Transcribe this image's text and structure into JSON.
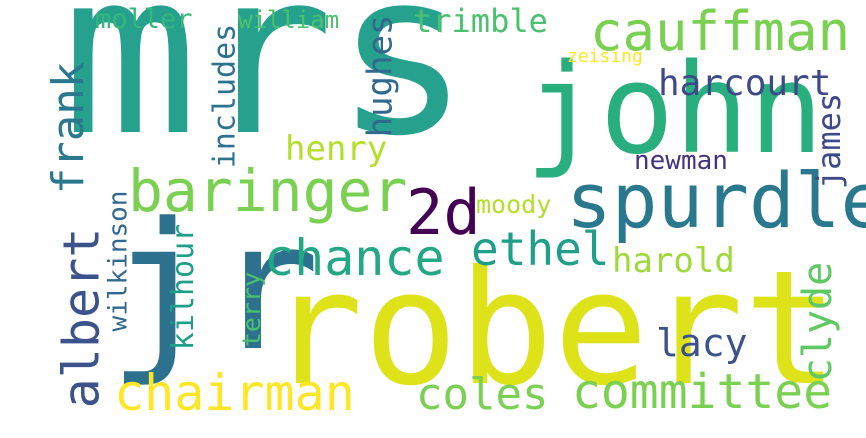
{
  "words": [
    {
      "text": "mrs",
      "color": "#25a18e"
    },
    {
      "text": "john",
      "color": "#29af7f"
    },
    {
      "text": "robert",
      "color": "#dde318"
    },
    {
      "text": "jr",
      "color": "#2c728e"
    },
    {
      "text": "spurdle",
      "color": "#2a788e"
    },
    {
      "text": "cauffman",
      "color": "#7ad151"
    },
    {
      "text": "baringer",
      "color": "#7ad151"
    },
    {
      "text": "2d",
      "color": "#440154"
    },
    {
      "text": "chance",
      "color": "#22a884"
    },
    {
      "text": "ethel",
      "color": "#1f9e89"
    },
    {
      "text": "albert",
      "color": "#3b528b"
    },
    {
      "text": "frank",
      "color": "#2a788e"
    },
    {
      "text": "chairman",
      "color": "#fde725"
    },
    {
      "text": "coles",
      "color": "#7ad151"
    },
    {
      "text": "committee",
      "color": "#7ad151"
    },
    {
      "text": "clyde",
      "color": "#5ec962"
    },
    {
      "text": "harcourt",
      "color": "#3e4989"
    },
    {
      "text": "james",
      "color": "#3e4989"
    },
    {
      "text": "newman",
      "color": "#46337e"
    },
    {
      "text": "harold",
      "color": "#9fda3a"
    },
    {
      "text": "lacy",
      "color": "#3b528b"
    },
    {
      "text": "henry",
      "color": "#b5de2b"
    },
    {
      "text": "hughes",
      "color": "#31688e"
    },
    {
      "text": "includes",
      "color": "#2c728e"
    },
    {
      "text": "moller",
      "color": "#35b779"
    },
    {
      "text": "william",
      "color": "#4ac16d"
    },
    {
      "text": "trimble",
      "color": "#4ac16d"
    },
    {
      "text": "zeising",
      "color": "#fde725"
    },
    {
      "text": "moody",
      "color": "#b5de2b"
    },
    {
      "text": "wilkinson",
      "color": "#31688e"
    },
    {
      "text": "kilhour",
      "color": "#1f9e89"
    },
    {
      "text": "terry",
      "color": "#4ac16d"
    }
  ]
}
